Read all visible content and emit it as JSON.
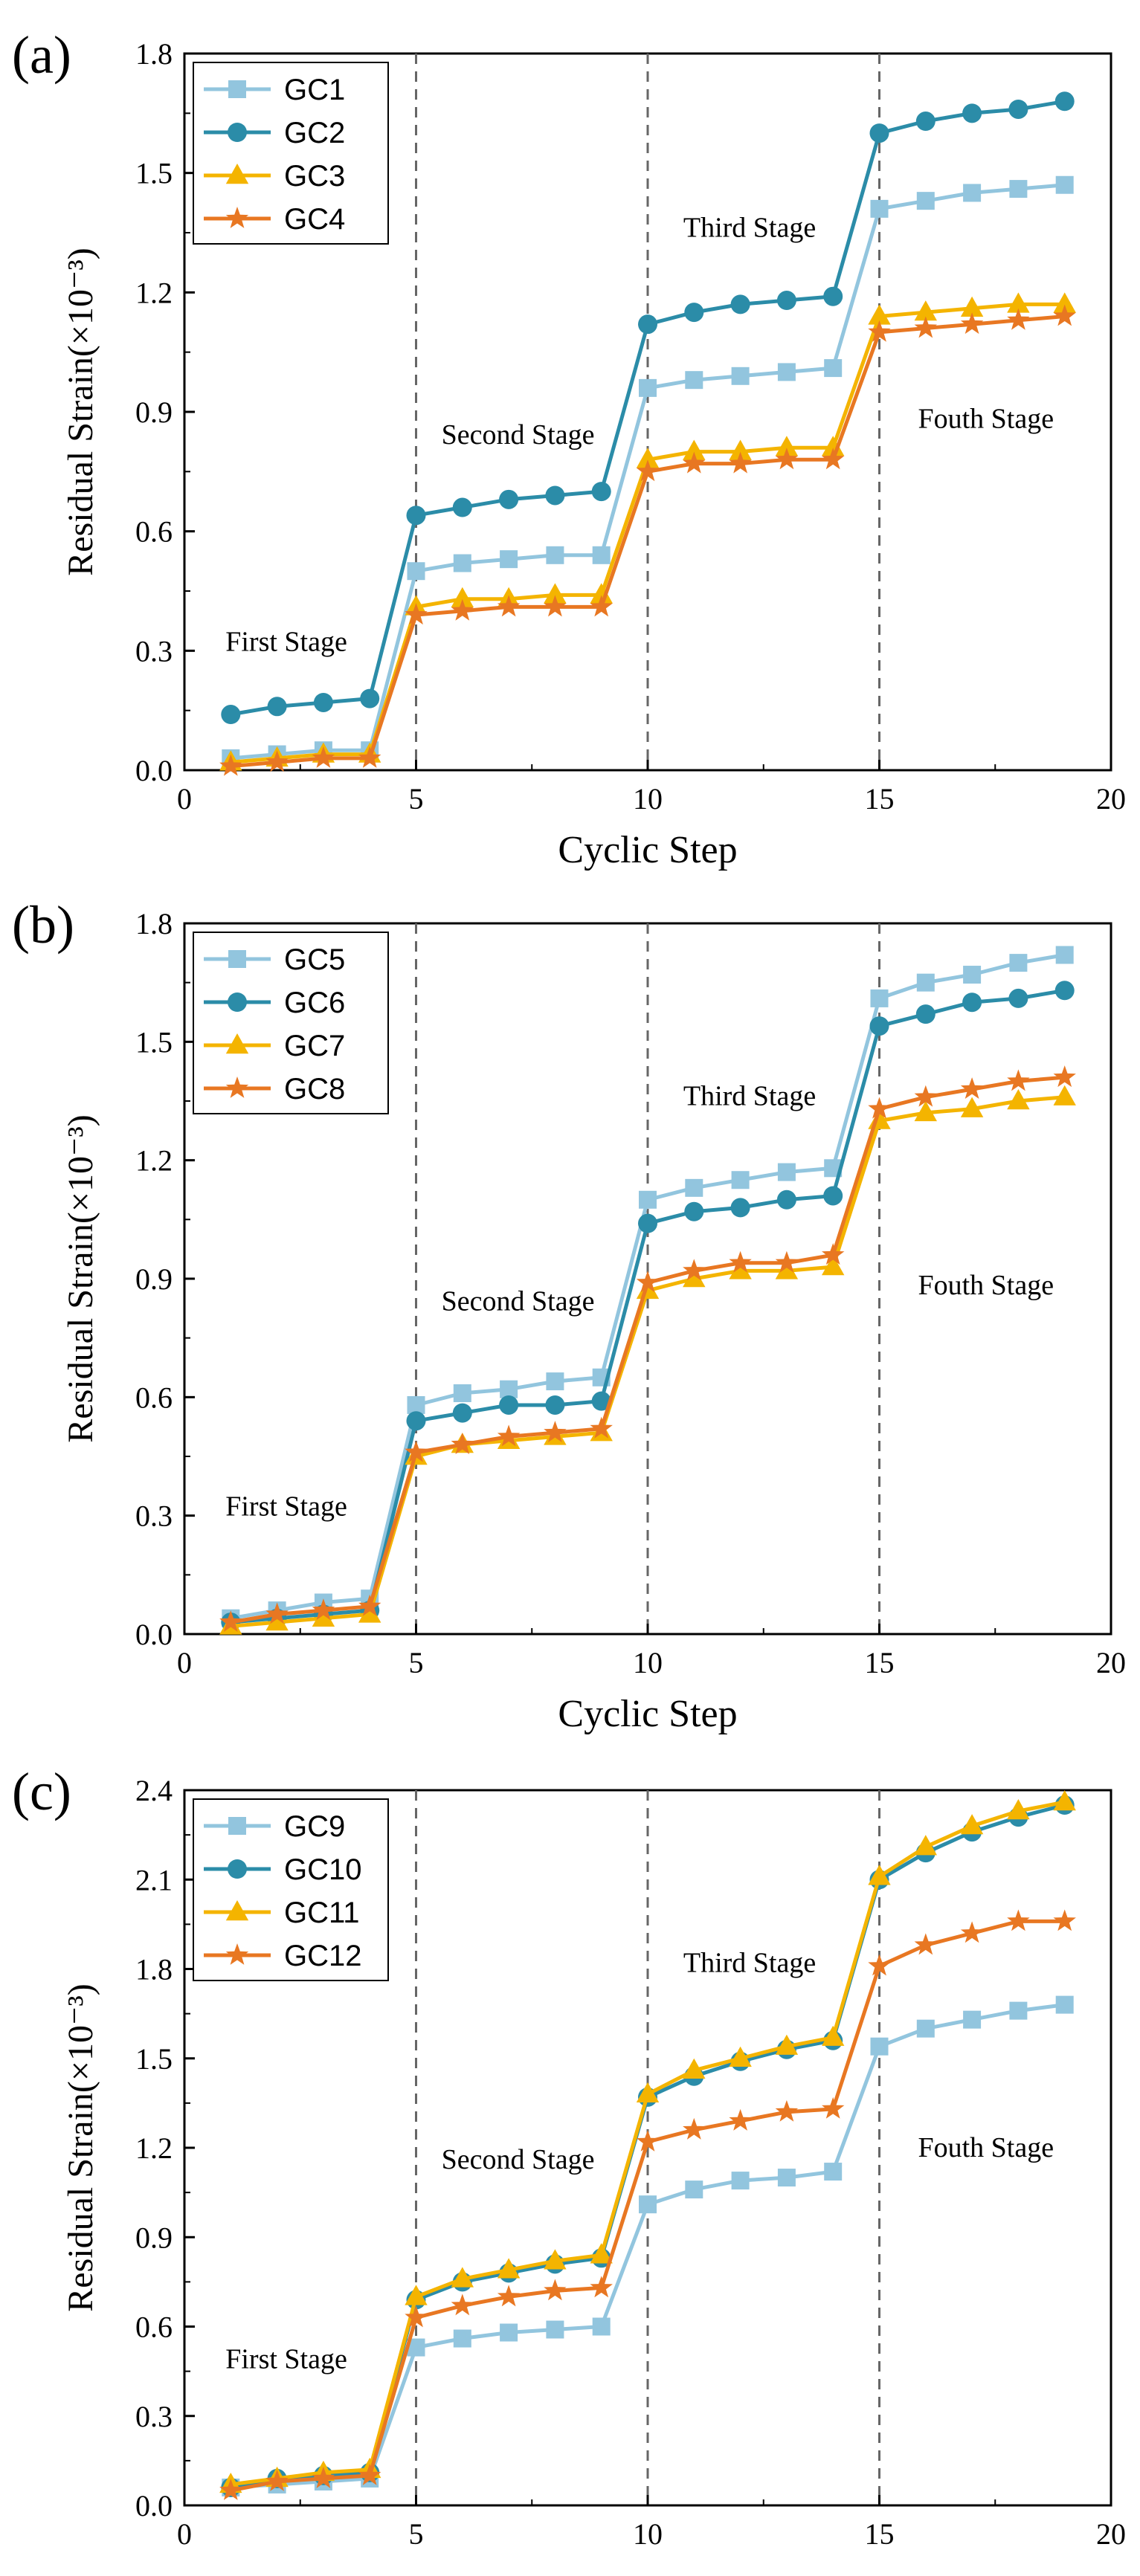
{
  "figure": {
    "stage_divider_x": [
      5,
      10,
      15
    ],
    "colors": {
      "light_blue": "#92C5DE",
      "teal": "#2B8CA8",
      "amber": "#F4B400",
      "orange": "#E87722",
      "axis": "#000000",
      "divider": "#666666"
    }
  },
  "chart_data": [
    {
      "type": "line",
      "panel_label": "(a)",
      "xlabel": "Cyclic Step",
      "ylabel": "Residual Strain(×10⁻³)",
      "xlim": [
        0,
        20
      ],
      "ylim": [
        0,
        1.8
      ],
      "xticks": [
        0,
        5,
        10,
        15,
        20
      ],
      "yticks": [
        "0.0",
        "0.3",
        "0.6",
        "0.9",
        "1.2",
        "1.5",
        "1.8"
      ],
      "legend_position": "top-left",
      "annotations": [
        {
          "text": "First Stage",
          "x": 2.2,
          "y": 0.3
        },
        {
          "text": "Second Stage",
          "x": 7.2,
          "y": 0.82
        },
        {
          "text": "Third Stage",
          "x": 12.2,
          "y": 1.34
        },
        {
          "text": "Fouth Stage",
          "x": 17.3,
          "y": 0.86
        }
      ],
      "x": [
        1,
        2,
        3,
        4,
        5,
        6,
        7,
        8,
        9,
        10,
        11,
        12,
        13,
        14,
        15,
        16,
        17,
        18,
        19
      ],
      "series": [
        {
          "name": "GC1",
          "marker": "square",
          "color": "#92C5DE",
          "values": [
            0.03,
            0.04,
            0.05,
            0.05,
            0.5,
            0.52,
            0.53,
            0.54,
            0.54,
            0.96,
            0.98,
            0.99,
            1.0,
            1.01,
            1.41,
            1.43,
            1.45,
            1.46,
            1.47
          ]
        },
        {
          "name": "GC2",
          "marker": "circle",
          "color": "#2B8CA8",
          "values": [
            0.14,
            0.16,
            0.17,
            0.18,
            0.64,
            0.66,
            0.68,
            0.69,
            0.7,
            1.12,
            1.15,
            1.17,
            1.18,
            1.19,
            1.6,
            1.63,
            1.65,
            1.66,
            1.68
          ]
        },
        {
          "name": "GC3",
          "marker": "triangle",
          "color": "#F4B400",
          "values": [
            0.02,
            0.03,
            0.04,
            0.04,
            0.41,
            0.43,
            0.43,
            0.44,
            0.44,
            0.78,
            0.8,
            0.8,
            0.81,
            0.81,
            1.14,
            1.15,
            1.16,
            1.17,
            1.17
          ]
        },
        {
          "name": "GC4",
          "marker": "star",
          "color": "#E87722",
          "values": [
            0.01,
            0.02,
            0.03,
            0.03,
            0.39,
            0.4,
            0.41,
            0.41,
            0.41,
            0.75,
            0.77,
            0.77,
            0.78,
            0.78,
            1.1,
            1.11,
            1.12,
            1.13,
            1.14
          ]
        }
      ]
    },
    {
      "type": "line",
      "panel_label": "(b)",
      "xlabel": "Cyclic Step",
      "ylabel": "Residual Strain(×10⁻³)",
      "xlim": [
        0,
        20
      ],
      "ylim": [
        0,
        1.8
      ],
      "xticks": [
        0,
        5,
        10,
        15,
        20
      ],
      "yticks": [
        "0.0",
        "0.3",
        "0.6",
        "0.9",
        "1.2",
        "1.5",
        "1.8"
      ],
      "legend_position": "top-left",
      "annotations": [
        {
          "text": "First Stage",
          "x": 2.2,
          "y": 0.3
        },
        {
          "text": "Second Stage",
          "x": 7.2,
          "y": 0.82
        },
        {
          "text": "Third Stage",
          "x": 12.2,
          "y": 1.34
        },
        {
          "text": "Fouth Stage",
          "x": 17.3,
          "y": 0.86
        }
      ],
      "x": [
        1,
        2,
        3,
        4,
        5,
        6,
        7,
        8,
        9,
        10,
        11,
        12,
        13,
        14,
        15,
        16,
        17,
        18,
        19
      ],
      "series": [
        {
          "name": "GC5",
          "marker": "square",
          "color": "#92C5DE",
          "values": [
            0.04,
            0.06,
            0.08,
            0.09,
            0.58,
            0.61,
            0.62,
            0.64,
            0.65,
            1.1,
            1.13,
            1.15,
            1.17,
            1.18,
            1.61,
            1.65,
            1.67,
            1.7,
            1.72
          ]
        },
        {
          "name": "GC6",
          "marker": "circle",
          "color": "#2B8CA8",
          "values": [
            0.03,
            0.04,
            0.05,
            0.06,
            0.54,
            0.56,
            0.58,
            0.58,
            0.59,
            1.04,
            1.07,
            1.08,
            1.1,
            1.11,
            1.54,
            1.57,
            1.6,
            1.61,
            1.63
          ]
        },
        {
          "name": "GC7",
          "marker": "triangle",
          "color": "#F4B400",
          "values": [
            0.02,
            0.03,
            0.04,
            0.05,
            0.45,
            0.48,
            0.49,
            0.5,
            0.51,
            0.87,
            0.9,
            0.92,
            0.92,
            0.93,
            1.3,
            1.32,
            1.33,
            1.35,
            1.36
          ]
        },
        {
          "name": "GC8",
          "marker": "star",
          "color": "#E87722",
          "values": [
            0.03,
            0.05,
            0.06,
            0.07,
            0.46,
            0.48,
            0.5,
            0.51,
            0.52,
            0.89,
            0.92,
            0.94,
            0.94,
            0.96,
            1.33,
            1.36,
            1.38,
            1.4,
            1.41
          ]
        }
      ]
    },
    {
      "type": "line",
      "panel_label": "(c)",
      "xlabel": "",
      "ylabel": "Residual Strain(×10⁻³)",
      "xlim": [
        0,
        20
      ],
      "ylim": [
        0,
        2.4
      ],
      "xticks": [
        0,
        5,
        10,
        15,
        20
      ],
      "yticks": [
        "0.0",
        "0.3",
        "0.6",
        "0.9",
        "1.2",
        "1.5",
        "1.8",
        "2.1",
        "2.4"
      ],
      "legend_position": "top-left",
      "annotations": [
        {
          "text": "First Stage",
          "x": 2.2,
          "y": 0.46
        },
        {
          "text": "Second Stage",
          "x": 7.2,
          "y": 1.13
        },
        {
          "text": "Third Stage",
          "x": 12.2,
          "y": 1.79
        },
        {
          "text": "Fouth Stage",
          "x": 17.3,
          "y": 1.17
        }
      ],
      "x": [
        1,
        2,
        3,
        4,
        5,
        6,
        7,
        8,
        9,
        10,
        11,
        12,
        13,
        14,
        15,
        16,
        17,
        18,
        19
      ],
      "series": [
        {
          "name": "GC9",
          "marker": "square",
          "color": "#92C5DE",
          "values": [
            0.06,
            0.07,
            0.08,
            0.09,
            0.53,
            0.56,
            0.58,
            0.59,
            0.6,
            1.01,
            1.06,
            1.09,
            1.1,
            1.12,
            1.54,
            1.6,
            1.63,
            1.66,
            1.68
          ]
        },
        {
          "name": "GC10",
          "marker": "circle",
          "color": "#2B8CA8",
          "values": [
            0.06,
            0.09,
            0.1,
            0.11,
            0.69,
            0.75,
            0.78,
            0.81,
            0.83,
            1.37,
            1.44,
            1.49,
            1.53,
            1.56,
            2.1,
            2.19,
            2.26,
            2.31,
            2.35
          ]
        },
        {
          "name": "GC11",
          "marker": "triangle",
          "color": "#F4B400",
          "values": [
            0.07,
            0.09,
            0.11,
            0.12,
            0.7,
            0.76,
            0.79,
            0.82,
            0.84,
            1.38,
            1.46,
            1.5,
            1.54,
            1.57,
            2.11,
            2.21,
            2.28,
            2.33,
            2.36
          ]
        },
        {
          "name": "GC12",
          "marker": "star",
          "color": "#E87722",
          "values": [
            0.05,
            0.08,
            0.09,
            0.1,
            0.63,
            0.67,
            0.7,
            0.72,
            0.73,
            1.22,
            1.26,
            1.29,
            1.32,
            1.33,
            1.81,
            1.88,
            1.92,
            1.96,
            1.96
          ]
        }
      ]
    }
  ]
}
